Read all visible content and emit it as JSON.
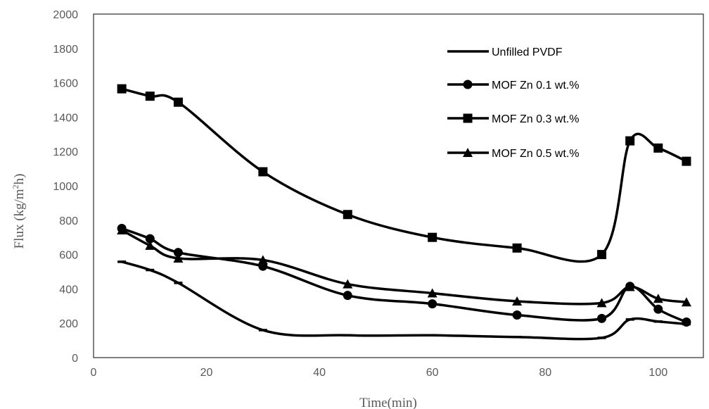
{
  "chart_data": {
    "type": "line",
    "title": "",
    "xlabel": "Time(min)",
    "ylabel_main": "Flux (kg/m",
    "ylabel_sup": "2",
    "ylabel_tail": "h)",
    "xlim": [
      0,
      108
    ],
    "ylim": [
      0,
      2000
    ],
    "x_ticks": [
      0,
      20,
      40,
      60,
      80,
      100
    ],
    "y_ticks": [
      0,
      200,
      400,
      600,
      800,
      1000,
      1200,
      1400,
      1600,
      1800,
      2000
    ],
    "x_tick_labels": [
      "0",
      "20",
      "40",
      "60",
      "80",
      "100"
    ],
    "y_tick_labels": [
      "0",
      "200",
      "400",
      "600",
      "800",
      "1000",
      "1200",
      "1400",
      "1600",
      "1800",
      "2000"
    ],
    "grid": false,
    "legend_position": "top-right",
    "x": [
      5,
      10,
      15,
      30,
      45,
      60,
      75,
      90,
      95,
      100,
      105
    ],
    "series": [
      {
        "name": "Unfilled PVDF",
        "marker": "dash",
        "color": "#000000",
        "values": [
          558,
          510,
          435,
          160,
          130,
          130,
          120,
          115,
          222,
          210,
          195
        ]
      },
      {
        "name": "MOF Zn 0.1 wt.%",
        "marker": "circle",
        "color": "#000000",
        "values": [
          752,
          692,
          612,
          532,
          362,
          313,
          248,
          228,
          415,
          282,
          207
        ]
      },
      {
        "name": "MOF Zn 0.3 wt.%",
        "marker": "square",
        "color": "#000000",
        "values": [
          1565,
          1522,
          1487,
          1082,
          833,
          700,
          638,
          600,
          1262,
          1220,
          1143
        ]
      },
      {
        "name": "MOF Zn 0.5 wt.%",
        "marker": "triangle",
        "color": "#000000",
        "values": [
          742,
          652,
          578,
          568,
          428,
          375,
          328,
          318,
          412,
          343,
          323
        ]
      }
    ]
  }
}
